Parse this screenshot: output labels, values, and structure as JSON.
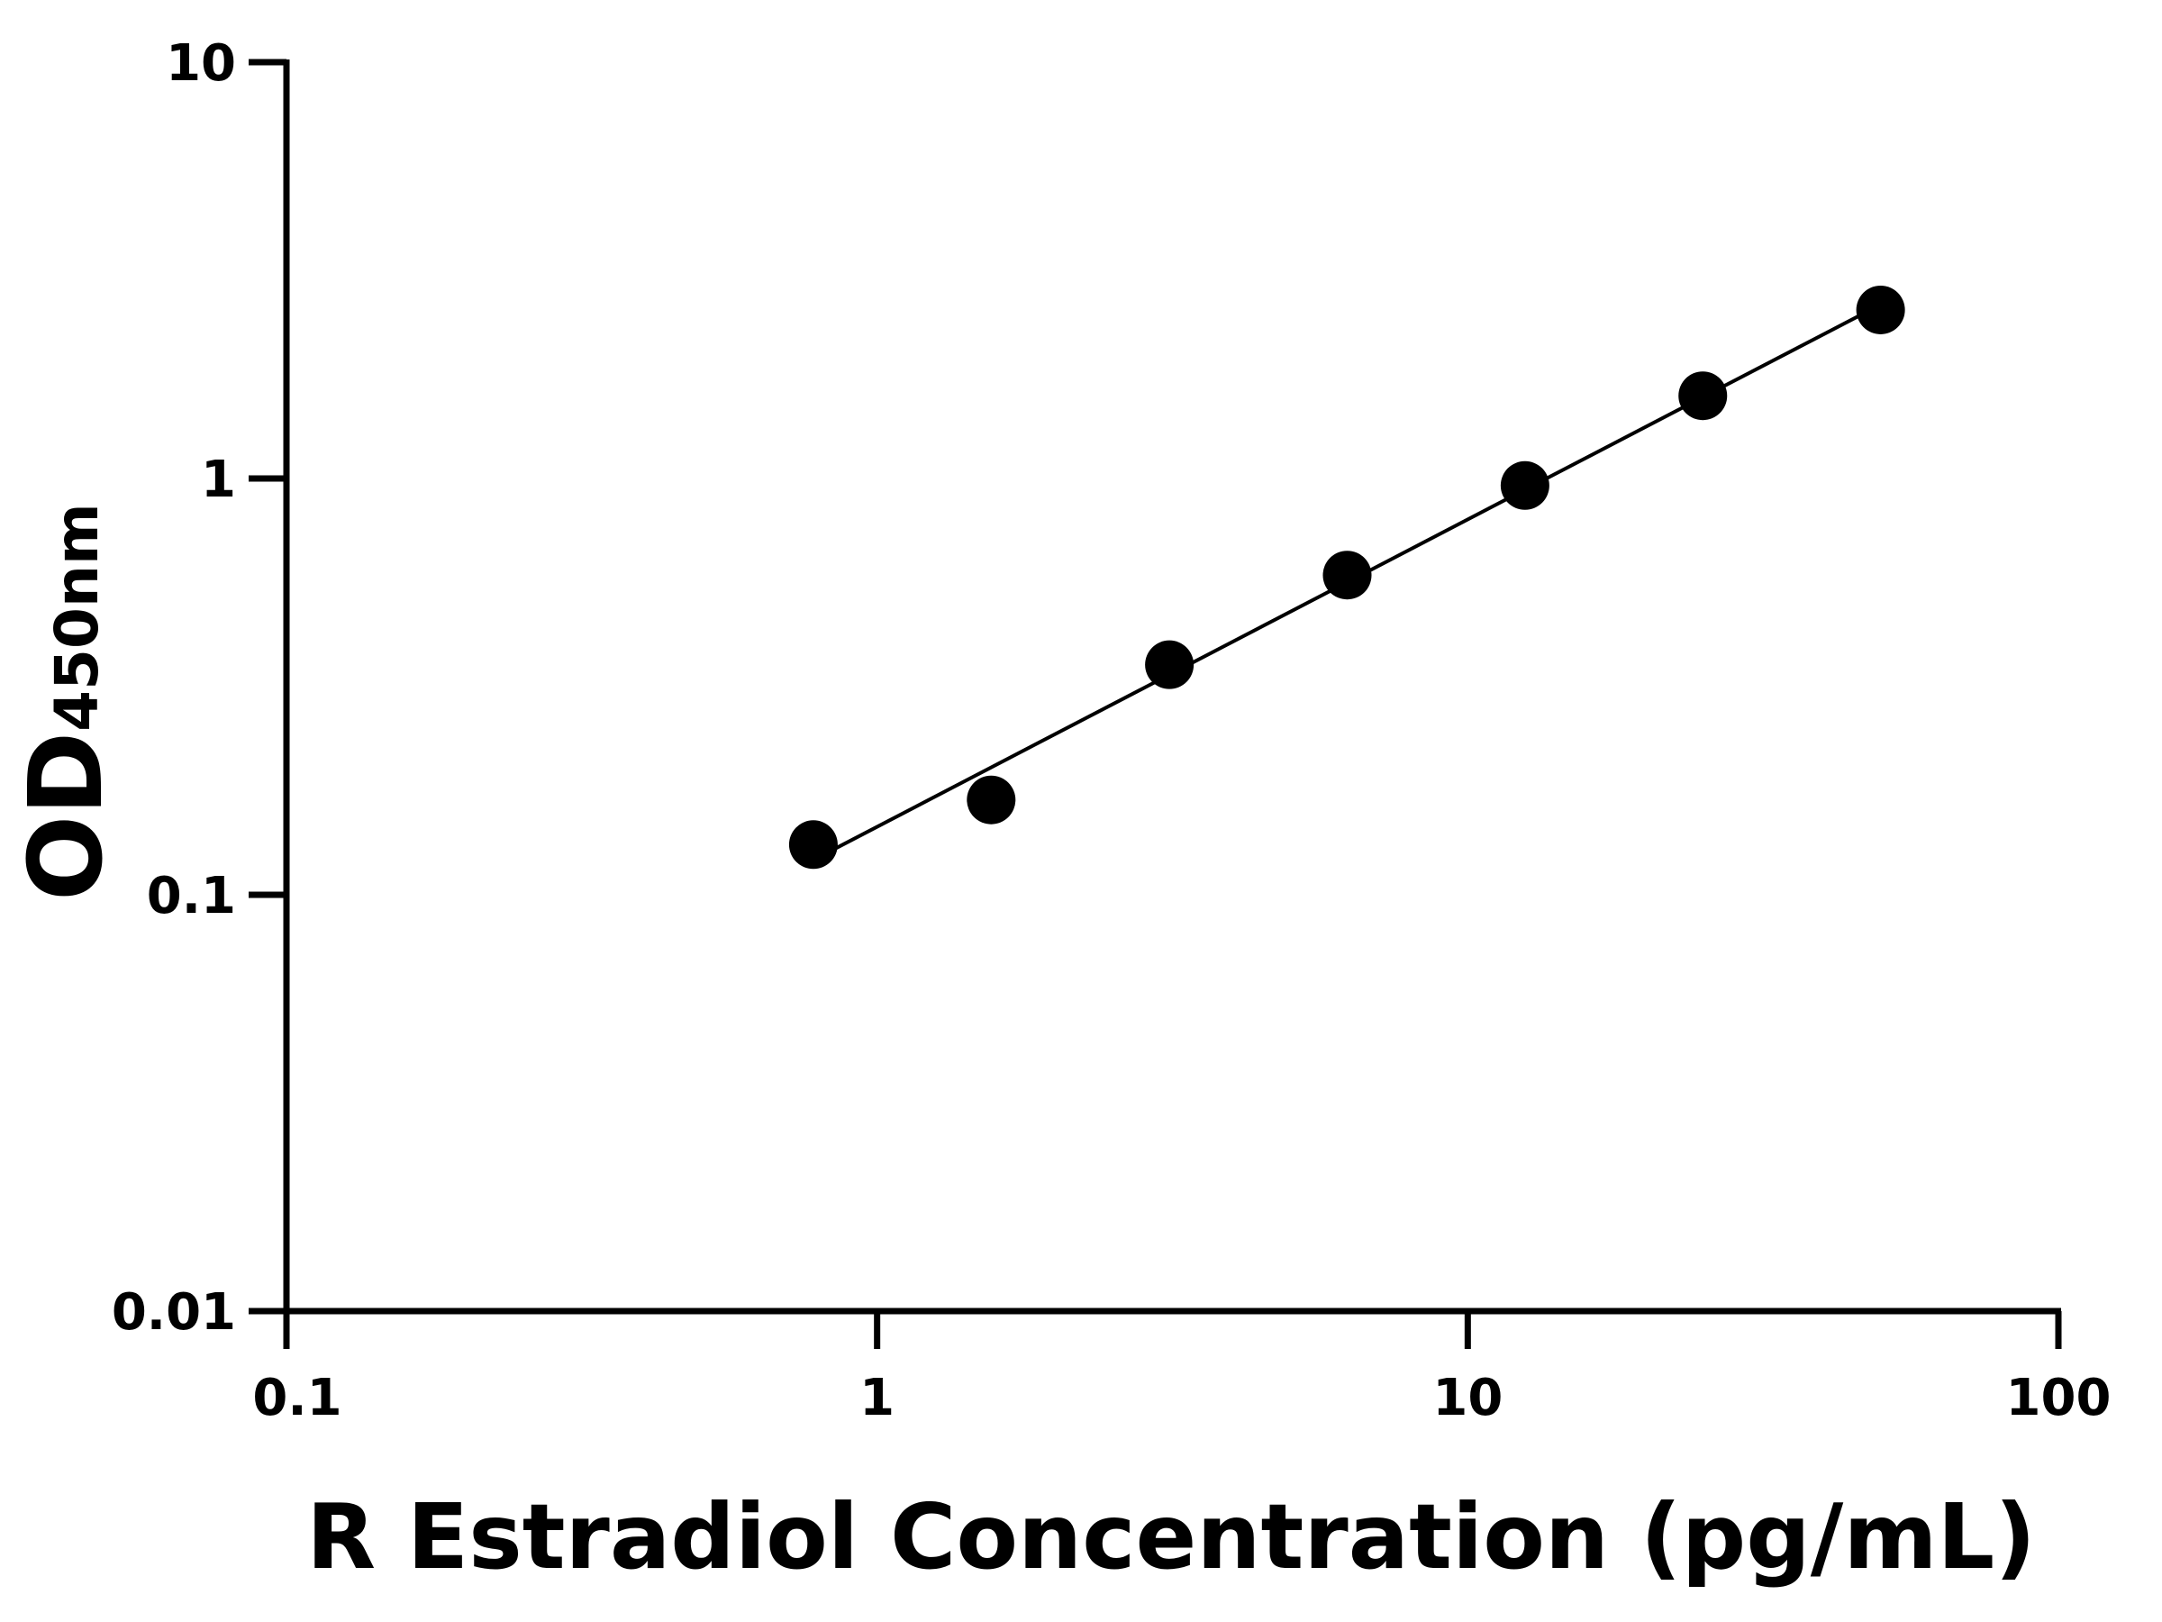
{
  "chart_data": {
    "type": "scatter",
    "title": "",
    "xlabel": "R Estradiol Concentration (pg/mL)",
    "ylabel": "OD",
    "ylabel_subscript": "450nm",
    "x_scale": "log",
    "y_scale": "log",
    "xlim": [
      0.1,
      100
    ],
    "ylim": [
      0.01,
      10
    ],
    "x_ticks": [
      "0.1",
      "1",
      "10",
      "100"
    ],
    "y_ticks": [
      "0.01",
      "0.1",
      "1",
      "10"
    ],
    "grid": false,
    "legend": "none",
    "fit_line": true,
    "marker_color": "#000000",
    "series": [
      {
        "x": [
          0.78,
          1.56,
          3.125,
          6.25,
          12.5,
          25,
          50
        ],
        "y": [
          0.132,
          0.169,
          0.357,
          0.586,
          0.962,
          1.58,
          2.54
        ]
      }
    ]
  }
}
